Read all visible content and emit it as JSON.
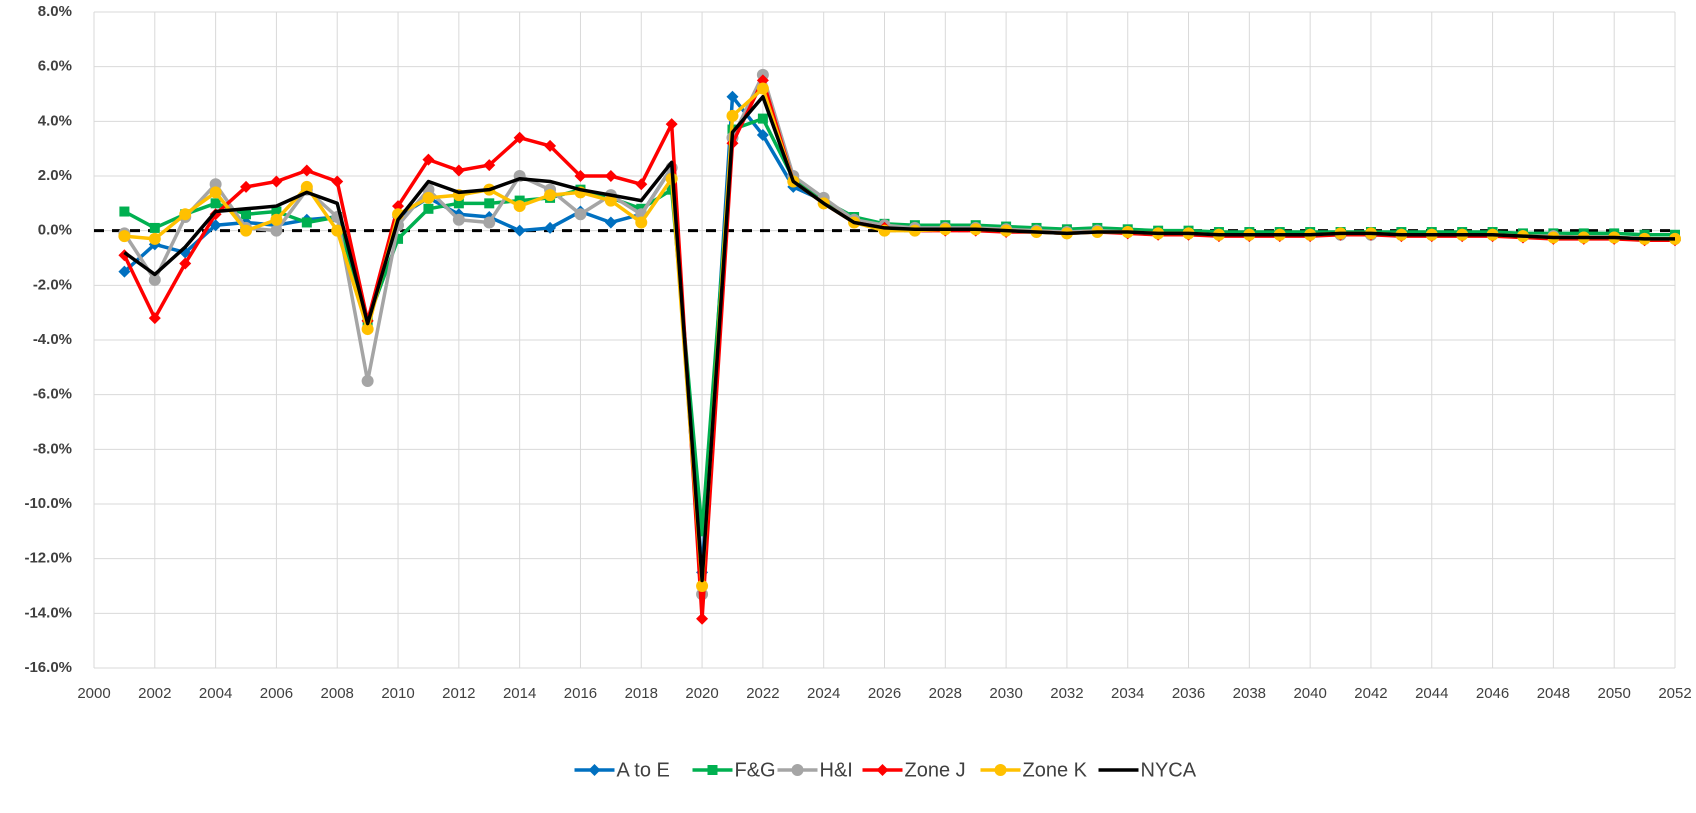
{
  "chart_data": {
    "type": "line",
    "x": [
      2001,
      2002,
      2003,
      2004,
      2005,
      2006,
      2007,
      2008,
      2009,
      2010,
      2011,
      2012,
      2013,
      2014,
      2015,
      2016,
      2017,
      2018,
      2019,
      2020,
      2021,
      2022,
      2023,
      2024,
      2025,
      2026,
      2027,
      2028,
      2029,
      2030,
      2031,
      2032,
      2033,
      2034,
      2035,
      2036,
      2037,
      2038,
      2039,
      2040,
      2041,
      2042,
      2043,
      2044,
      2045,
      2046,
      2047,
      2048,
      2049,
      2050,
      2051,
      2052
    ],
    "series": [
      {
        "name": "A to E",
        "color": "#0070c0",
        "marker": "diamond",
        "values": [
          -1.5,
          -0.5,
          -0.8,
          0.2,
          0.3,
          0.2,
          0.4,
          0.5,
          -3.3,
          0.5,
          1.2,
          0.6,
          0.5,
          0.0,
          0.1,
          0.7,
          0.3,
          0.6,
          2.3,
          -12.5,
          4.9,
          3.5,
          1.6,
          1.1,
          0.4,
          0.2,
          0.1,
          0.1,
          0.05,
          0.0,
          -0.05,
          -0.1,
          0.0,
          -0.05,
          -0.1,
          -0.1,
          -0.15,
          -0.15,
          -0.15,
          -0.15,
          -0.1,
          -0.1,
          -0.15,
          -0.15,
          -0.15,
          -0.15,
          -0.2,
          -0.25,
          -0.25,
          -0.25,
          -0.3,
          -0.3
        ]
      },
      {
        "name": "F&G",
        "color": "#00b050",
        "marker": "square",
        "values": [
          0.7,
          0.1,
          0.6,
          1.0,
          0.6,
          0.7,
          0.3,
          0.5,
          -3.3,
          -0.3,
          0.8,
          1.0,
          1.0,
          1.1,
          1.2,
          1.5,
          1.2,
          0.8,
          1.5,
          -11.0,
          3.7,
          4.1,
          1.9,
          1.1,
          0.5,
          0.25,
          0.2,
          0.2,
          0.2,
          0.15,
          0.1,
          0.05,
          0.1,
          0.05,
          0.0,
          0.0,
          -0.05,
          -0.05,
          -0.05,
          -0.05,
          -0.05,
          -0.05,
          -0.05,
          -0.05,
          -0.05,
          -0.05,
          -0.1,
          -0.1,
          -0.1,
          -0.1,
          -0.15,
          -0.15
        ]
      },
      {
        "name": "H&I",
        "color": "#a5a5a5",
        "marker": "circle",
        "values": [
          -0.1,
          -1.8,
          0.5,
          1.7,
          0.1,
          0.0,
          1.5,
          0.5,
          -5.5,
          0.2,
          1.5,
          0.4,
          0.3,
          2.0,
          1.5,
          0.6,
          1.3,
          0.6,
          2.3,
          -13.3,
          3.4,
          5.7,
          2.0,
          1.2,
          0.4,
          0.2,
          0.1,
          0.1,
          0.1,
          0.05,
          0.0,
          -0.05,
          0.0,
          -0.05,
          -0.1,
          -0.1,
          -0.15,
          -0.15,
          -0.15,
          -0.15,
          -0.15,
          -0.15,
          -0.15,
          -0.15,
          -0.15,
          -0.15,
          -0.2,
          -0.2,
          -0.25,
          -0.25,
          -0.3,
          -0.3
        ]
      },
      {
        "name": "Zone J",
        "color": "#ff0000",
        "marker": "diamond",
        "values": [
          -0.9,
          -3.2,
          -1.2,
          0.6,
          1.6,
          1.8,
          2.2,
          1.8,
          -3.3,
          0.9,
          2.6,
          2.2,
          2.4,
          3.4,
          3.1,
          2.0,
          2.0,
          1.7,
          3.9,
          -14.2,
          3.2,
          5.5,
          1.8,
          1.0,
          0.3,
          0.1,
          0.0,
          0.0,
          0.0,
          -0.05,
          -0.05,
          -0.1,
          -0.05,
          -0.1,
          -0.15,
          -0.15,
          -0.2,
          -0.2,
          -0.2,
          -0.2,
          -0.15,
          -0.15,
          -0.2,
          -0.2,
          -0.2,
          -0.2,
          -0.25,
          -0.3,
          -0.3,
          -0.3,
          -0.35,
          -0.35
        ]
      },
      {
        "name": "Zone K",
        "color": "#ffc000",
        "marker": "circle",
        "values": [
          -0.2,
          -0.3,
          0.6,
          1.4,
          0.0,
          0.4,
          1.6,
          0.0,
          -3.6,
          0.6,
          1.2,
          1.3,
          1.5,
          0.9,
          1.3,
          1.4,
          1.1,
          0.3,
          1.9,
          -13.0,
          4.2,
          5.2,
          1.8,
          1.0,
          0.3,
          0.0,
          0.0,
          0.05,
          0.05,
          0.0,
          -0.05,
          -0.1,
          -0.05,
          -0.05,
          -0.1,
          -0.1,
          -0.15,
          -0.15,
          -0.15,
          -0.15,
          -0.1,
          -0.1,
          -0.15,
          -0.15,
          -0.15,
          -0.15,
          -0.2,
          -0.25,
          -0.25,
          -0.25,
          -0.3,
          -0.3
        ]
      },
      {
        "name": "NYCA",
        "color": "#000000",
        "marker": "none",
        "values": [
          -0.8,
          -1.6,
          -0.6,
          0.7,
          0.8,
          0.9,
          1.4,
          1.0,
          -3.4,
          0.4,
          1.8,
          1.4,
          1.5,
          1.9,
          1.8,
          1.5,
          1.3,
          1.1,
          2.5,
          -12.8,
          3.6,
          4.9,
          1.8,
          1.0,
          0.3,
          0.1,
          0.05,
          0.05,
          0.05,
          0.0,
          -0.05,
          -0.1,
          -0.05,
          -0.05,
          -0.1,
          -0.1,
          -0.15,
          -0.15,
          -0.15,
          -0.15,
          -0.1,
          -0.1,
          -0.15,
          -0.15,
          -0.15,
          -0.15,
          -0.2,
          -0.25,
          -0.25,
          -0.25,
          -0.3,
          -0.3
        ]
      }
    ],
    "xlim": [
      2000,
      2052
    ],
    "xticks": [
      2000,
      2002,
      2004,
      2006,
      2008,
      2010,
      2012,
      2014,
      2016,
      2018,
      2020,
      2022,
      2024,
      2026,
      2028,
      2030,
      2032,
      2034,
      2036,
      2038,
      2040,
      2042,
      2044,
      2046,
      2048,
      2050,
      2052
    ],
    "ylim": [
      -16,
      8
    ],
    "yticks": [
      {
        "value": 8,
        "label": "8.0%"
      },
      {
        "value": 6,
        "label": "6.0%"
      },
      {
        "value": 4,
        "label": "4.0%"
      },
      {
        "value": 2,
        "label": "2.0%"
      },
      {
        "value": 0,
        "label": "0.0%"
      },
      {
        "value": -2,
        "label": "-2.0%"
      },
      {
        "value": -4,
        "label": "-4.0%"
      },
      {
        "value": -6,
        "label": "-6.0%"
      },
      {
        "value": -8,
        "label": "-8.0%"
      },
      {
        "value": -10,
        "label": "-10.0%"
      },
      {
        "value": -12,
        "label": "-12.0%"
      },
      {
        "value": -14,
        "label": "-14.0%"
      },
      {
        "value": -16,
        "label": "-16.0%"
      }
    ],
    "grid": true,
    "zero_line": "dashed",
    "legend": "bottom"
  }
}
